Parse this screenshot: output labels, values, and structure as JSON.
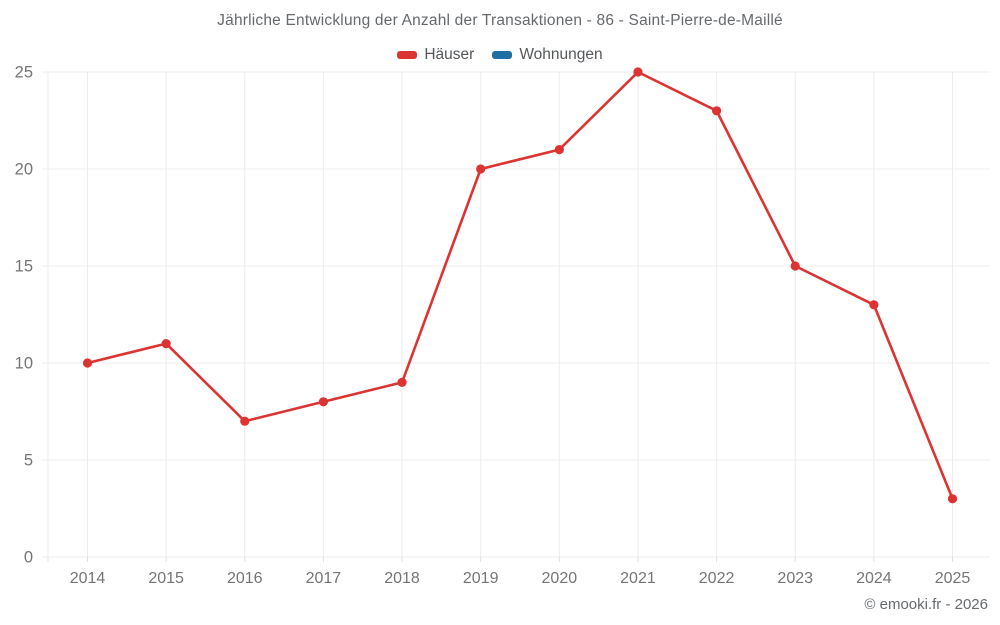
{
  "chart": {
    "title": "Jährliche Entwicklung der Anzahl der Transaktionen - 86 - Saint-Pierre-de-Maillé"
  },
  "legend": {
    "items": [
      {
        "label": "Häuser",
        "color": "#dc3333"
      },
      {
        "label": "Wohnungen",
        "color": "#1f6fa3"
      }
    ]
  },
  "footer": {
    "credit": "© emooki.fr - 2026"
  },
  "chart_data": {
    "type": "line",
    "title": "Jährliche Entwicklung der Anzahl der Transaktionen - 86 - Saint-Pierre-de-Maillé",
    "categories": [
      "2014",
      "2015",
      "2016",
      "2017",
      "2018",
      "2019",
      "2020",
      "2021",
      "2022",
      "2023",
      "2024",
      "2025"
    ],
    "series": [
      {
        "name": "Häuser",
        "color": "#dc3333",
        "values": [
          10,
          11,
          7,
          8,
          9,
          20,
          21,
          25,
          23,
          15,
          13,
          3
        ]
      },
      {
        "name": "Wohnungen",
        "color": "#1f6fa3",
        "values": []
      }
    ],
    "xlabel": "",
    "ylabel": "",
    "ylim": [
      0,
      25
    ],
    "ytick_step": 5,
    "grid": true,
    "legend_position": "top",
    "grid_color": "#ececec",
    "tick_color": "#e0e0e0",
    "axis_text_color": "#757575",
    "marker_radius": 4.6,
    "line_width": 2.6
  }
}
